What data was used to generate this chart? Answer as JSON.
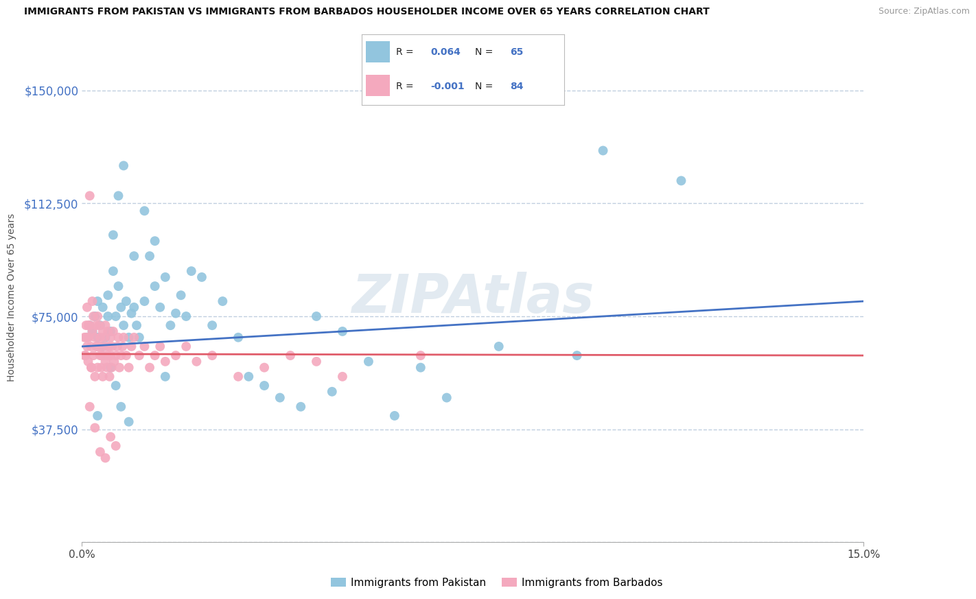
{
  "title": "IMMIGRANTS FROM PAKISTAN VS IMMIGRANTS FROM BARBADOS HOUSEHOLDER INCOME OVER 65 YEARS CORRELATION CHART",
  "source": "Source: ZipAtlas.com",
  "ylabel": "Householder Income Over 65 years",
  "xlim": [
    0.0,
    15.0
  ],
  "ylim": [
    0,
    162500
  ],
  "yticks": [
    0,
    37500,
    75000,
    112500,
    150000
  ],
  "ytick_labels": [
    "",
    "$37,500",
    "$75,000",
    "$112,500",
    "$150,000"
  ],
  "pakistan_color": "#92c5de",
  "barbados_color": "#f4a9be",
  "pakistan_line_color": "#4472c4",
  "barbados_line_color": "#e05c6a",
  "pakistan_R": 0.064,
  "pakistan_N": 65,
  "barbados_R": -0.001,
  "barbados_N": 84,
  "background_color": "#ffffff",
  "grid_color": "#c0cfe0",
  "watermark": "ZIPAtlas",
  "pakistan_x": [
    0.1,
    0.15,
    0.2,
    0.25,
    0.3,
    0.3,
    0.35,
    0.4,
    0.45,
    0.5,
    0.5,
    0.55,
    0.6,
    0.65,
    0.7,
    0.75,
    0.8,
    0.85,
    0.9,
    0.95,
    1.0,
    1.05,
    1.1,
    1.2,
    1.3,
    1.4,
    1.5,
    1.6,
    1.7,
    1.8,
    1.9,
    2.0,
    2.1,
    2.3,
    2.5,
    2.7,
    3.0,
    3.2,
    3.5,
    3.8,
    4.2,
    4.8,
    5.5,
    6.0,
    7.0,
    4.5,
    5.0,
    6.5,
    8.0,
    9.5,
    10.0,
    11.5,
    0.6,
    0.7,
    0.8,
    1.0,
    1.2,
    1.4,
    0.4,
    0.55,
    0.65,
    0.75,
    0.9,
    0.3,
    1.6
  ],
  "pakistan_y": [
    68000,
    72000,
    70000,
    75000,
    68000,
    80000,
    72000,
    78000,
    68000,
    75000,
    82000,
    70000,
    90000,
    75000,
    85000,
    78000,
    72000,
    80000,
    68000,
    76000,
    78000,
    72000,
    68000,
    80000,
    95000,
    85000,
    78000,
    88000,
    72000,
    76000,
    82000,
    75000,
    90000,
    88000,
    72000,
    80000,
    68000,
    55000,
    52000,
    48000,
    45000,
    50000,
    60000,
    42000,
    48000,
    75000,
    70000,
    58000,
    65000,
    62000,
    130000,
    120000,
    102000,
    115000,
    125000,
    95000,
    110000,
    100000,
    65000,
    58000,
    52000,
    45000,
    40000,
    42000,
    55000
  ],
  "barbados_x": [
    0.05,
    0.07,
    0.08,
    0.1,
    0.1,
    0.12,
    0.13,
    0.15,
    0.15,
    0.17,
    0.18,
    0.2,
    0.2,
    0.22,
    0.22,
    0.25,
    0.25,
    0.27,
    0.28,
    0.3,
    0.3,
    0.32,
    0.33,
    0.35,
    0.35,
    0.37,
    0.38,
    0.4,
    0.4,
    0.42,
    0.43,
    0.45,
    0.45,
    0.47,
    0.48,
    0.5,
    0.5,
    0.52,
    0.53,
    0.55,
    0.55,
    0.57,
    0.58,
    0.6,
    0.62,
    0.65,
    0.68,
    0.7,
    0.72,
    0.75,
    0.78,
    0.8,
    0.85,
    0.9,
    0.95,
    1.0,
    1.1,
    1.2,
    1.3,
    1.4,
    1.5,
    1.6,
    1.8,
    2.0,
    2.2,
    2.5,
    3.0,
    3.5,
    4.0,
    4.5,
    5.0,
    6.5,
    0.15,
    0.25,
    0.35,
    0.45,
    0.55,
    0.65,
    0.05,
    0.08,
    0.12,
    0.18,
    0.28,
    0.38
  ],
  "barbados_y": [
    68000,
    62000,
    72000,
    65000,
    78000,
    60000,
    68000,
    115000,
    72000,
    65000,
    58000,
    70000,
    80000,
    62000,
    75000,
    68000,
    55000,
    72000,
    65000,
    75000,
    58000,
    65000,
    72000,
    62000,
    68000,
    58000,
    65000,
    70000,
    55000,
    62000,
    68000,
    72000,
    60000,
    65000,
    58000,
    70000,
    62000,
    65000,
    55000,
    68000,
    62000,
    58000,
    65000,
    70000,
    60000,
    62000,
    65000,
    68000,
    58000,
    62000,
    65000,
    68000,
    62000,
    58000,
    65000,
    68000,
    62000,
    65000,
    58000,
    62000,
    65000,
    60000,
    62000,
    65000,
    60000,
    62000,
    55000,
    58000,
    62000,
    60000,
    55000,
    62000,
    45000,
    38000,
    30000,
    28000,
    35000,
    32000,
    62000,
    68000,
    72000,
    58000,
    65000,
    62000
  ]
}
